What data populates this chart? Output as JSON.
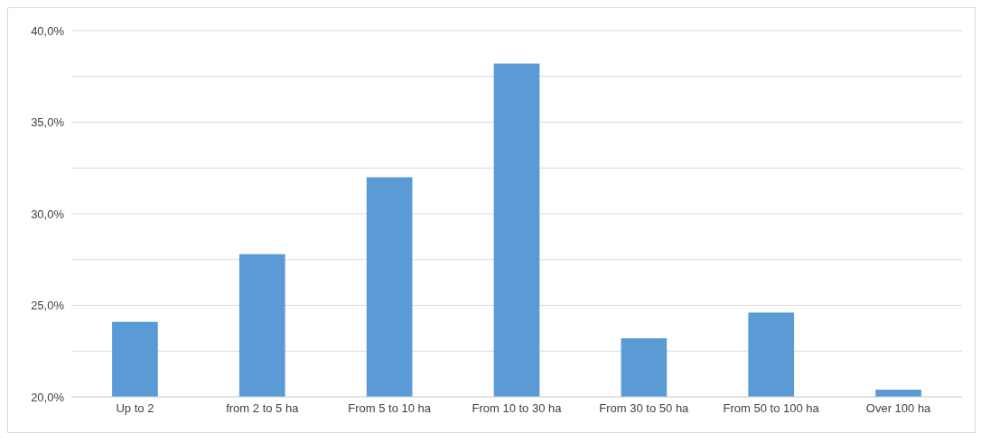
{
  "chart_data": {
    "type": "bar",
    "categories": [
      "Up to 2",
      "from 2 to 5 ha",
      "From 5 to 10 ha",
      "From 10 to 30 ha",
      "From 30 to 50 ha",
      "From 50 to 100 ha",
      "Over 100 ha"
    ],
    "values": [
      24.1,
      27.8,
      32.0,
      38.2,
      23.2,
      24.6,
      20.4
    ],
    "color": "#5b9bd5",
    "ylim": [
      20,
      40
    ],
    "yticks": [
      {
        "value": 20,
        "label": "20,0%"
      },
      {
        "value": 22.5,
        "label": null
      },
      {
        "value": 25,
        "label": "25,0%"
      },
      {
        "value": 27.5,
        "label": null
      },
      {
        "value": 30,
        "label": "30,0%"
      },
      {
        "value": 32.5,
        "label": null
      },
      {
        "value": 35,
        "label": "35,0%"
      },
      {
        "value": 37.5,
        "label": null
      },
      {
        "value": 40,
        "label": "40,0%"
      }
    ],
    "grid": "y"
  }
}
